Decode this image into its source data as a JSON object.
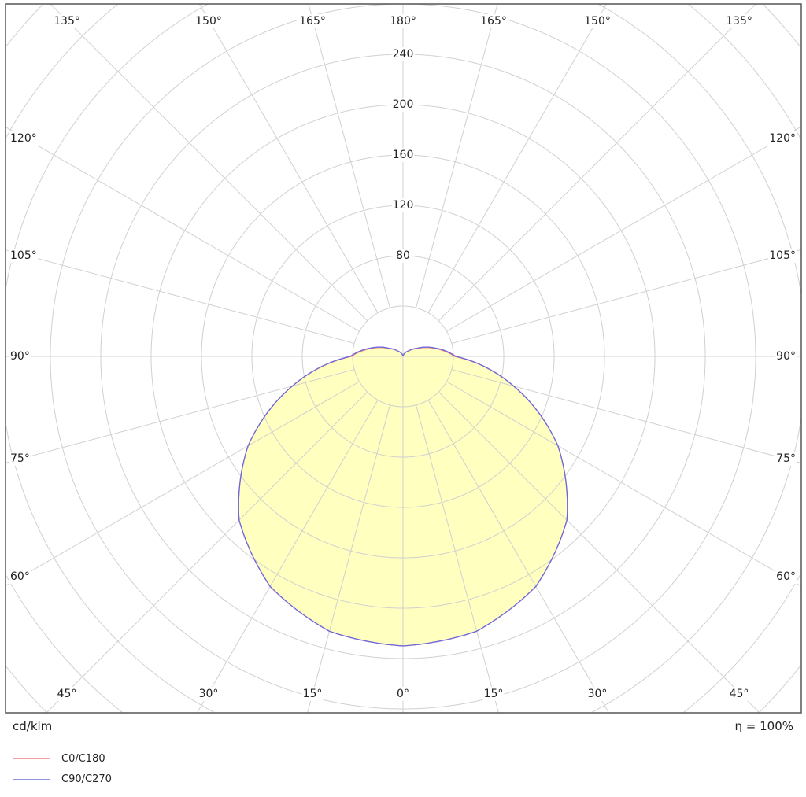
{
  "chart_data": {
    "type": "polar",
    "unit_label": "cd/klm",
    "efficiency_label": "η = 100%",
    "radial_ticks": [
      80,
      120,
      160,
      200,
      240
    ],
    "ring_step": 40,
    "angle_labels": {
      "top": [
        "135°",
        "150°",
        "165°",
        "180°",
        "165°",
        "150°",
        "135°"
      ],
      "left": [
        "120°",
        "105°",
        "90°",
        "75°",
        "60°"
      ],
      "right": [
        "120°",
        "105°",
        "90°",
        "75°",
        "60°"
      ],
      "bottom": [
        "45°",
        "30°",
        "15°",
        "0°",
        "15°",
        "30°",
        "45°"
      ]
    },
    "angles": [
      0,
      15,
      30,
      45,
      60,
      75,
      90,
      105,
      120,
      135,
      150,
      165,
      180
    ],
    "series": [
      {
        "name": "C0/C180",
        "color": "#f08080",
        "values": [
          230,
          226,
          211,
          184,
          142,
          91,
          41,
          25,
          12,
          6,
          3,
          1,
          0
        ]
      },
      {
        "name": "C90/C270",
        "color": "#6a6ae0",
        "values": [
          230,
          226,
          211,
          184,
          142,
          91,
          42,
          26,
          13,
          6,
          3,
          1,
          0
        ]
      }
    ],
    "fill_color": "#ffffc0",
    "grid": true
  }
}
